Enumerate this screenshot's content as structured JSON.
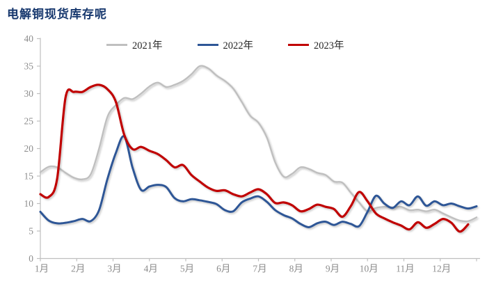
{
  "title": "电解铜现货库存呢",
  "legend": [
    {
      "label": "2021年",
      "color": "#bfbfbf"
    },
    {
      "label": "2022年",
      "color": "#2e5696"
    },
    {
      "label": "2023年",
      "color": "#c00000"
    }
  ],
  "style": {
    "title_color": "#17386e",
    "axis_color": "#bfbfbf",
    "tick_label_color": "#8c8c8c",
    "background": "#ffffff"
  },
  "chart_data": {
    "type": "line",
    "title": "电解铜现货库存呢",
    "xlabel": "",
    "ylabel": "",
    "x_axis_labels": [
      "1月",
      "2月",
      "3月",
      "4月",
      "5月",
      "6月",
      "7月",
      "8月",
      "9月",
      "10月",
      "11月",
      "12月"
    ],
    "x_description": "weekly data points spanning 1月 to 12月 (values listed week by week)",
    "ylim": [
      0,
      40
    ],
    "y_ticks": [
      0,
      5,
      10,
      15,
      20,
      25,
      30,
      35,
      40
    ],
    "grid": false,
    "legend_position": "top",
    "series": [
      {
        "name": "2021年",
        "color": "#bfbfbf",
        "stroke_width": 2.4,
        "values": [
          15.7,
          16.7,
          16.6,
          15.6,
          14.7,
          14.4,
          15.3,
          20.0,
          25.8,
          27.9,
          29.2,
          29.0,
          30.0,
          31.3,
          32.0,
          31.2,
          31.6,
          32.3,
          33.5,
          35.0,
          34.6,
          33.3,
          32.3,
          30.9,
          28.5,
          26.0,
          24.7,
          22.0,
          17.5,
          14.9,
          15.4,
          16.6,
          16.3,
          15.6,
          15.2,
          14.0,
          13.8,
          12.0,
          10.2,
          8.6,
          9.2,
          9.4,
          9.3,
          9.4,
          8.8,
          8.9,
          8.6,
          8.9,
          8.2,
          7.5,
          6.9,
          6.8,
          7.5
        ]
      },
      {
        "name": "2022年",
        "color": "#2e5696",
        "stroke_width": 3.0,
        "values": [
          8.5,
          6.9,
          6.4,
          6.5,
          6.8,
          7.2,
          6.8,
          8.8,
          14.5,
          19.2,
          22.2,
          16.5,
          12.5,
          13.1,
          13.4,
          13.0,
          11.0,
          10.4,
          10.8,
          10.6,
          10.3,
          9.9,
          8.8,
          8.6,
          10.2,
          10.9,
          11.3,
          10.3,
          8.8,
          7.9,
          7.3,
          6.3,
          5.7,
          6.4,
          6.7,
          6.1,
          6.7,
          6.3,
          5.9,
          8.5,
          11.4,
          10.0,
          9.2,
          10.4,
          9.7,
          11.3,
          9.6,
          10.4,
          9.7,
          10.0,
          9.5,
          9.1,
          9.5
        ]
      },
      {
        "name": "2023年",
        "color": "#c00000",
        "stroke_width": 3.2,
        "values": [
          11.7,
          11.2,
          14.5,
          29.3,
          30.3,
          30.3,
          31.2,
          31.6,
          30.8,
          28.5,
          22.5,
          19.9,
          20.3,
          19.6,
          19.0,
          17.9,
          16.6,
          17.0,
          15.2,
          14.0,
          12.9,
          12.3,
          12.4,
          11.7,
          11.3,
          12.0,
          12.6,
          11.7,
          10.1,
          10.2,
          9.7,
          8.6,
          9.0,
          9.8,
          9.4,
          9.0,
          7.6,
          9.5,
          12.1,
          10.4,
          8.2,
          7.3,
          6.6,
          6.0,
          5.3,
          6.6,
          5.6,
          6.3,
          7.2,
          6.5,
          4.9,
          6.2
        ]
      }
    ]
  }
}
